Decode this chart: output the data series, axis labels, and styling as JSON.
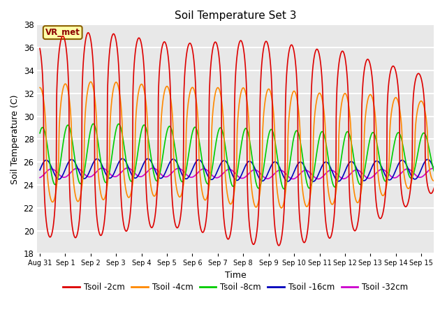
{
  "title": "Soil Temperature Set 3",
  "xlabel": "Time",
  "ylabel": "Soil Temperature (C)",
  "ylim": [
    18,
    38
  ],
  "yticks": [
    18,
    20,
    22,
    24,
    26,
    28,
    30,
    32,
    34,
    36,
    38
  ],
  "plot_bg_color": "#e8e8e8",
  "fig_bg_color": "#ffffff",
  "grid_color": "#ffffff",
  "series": {
    "Tsoil -2cm": {
      "color": "#dd0000",
      "mean": 28.0,
      "amp": 8.5,
      "phase_days": 0.65,
      "power": 3
    },
    "Tsoil -4cm": {
      "color": "#ff8800",
      "mean": 27.5,
      "amp": 5.0,
      "phase_days": 0.75,
      "power": 2
    },
    "Tsoil -8cm": {
      "color": "#00cc00",
      "mean": 26.5,
      "amp": 2.5,
      "phase_days": 0.85,
      "power": 1
    },
    "Tsoil -16cm": {
      "color": "#0000bb",
      "mean": 25.3,
      "amp": 0.85,
      "phase_days": 1.0,
      "power": 1
    },
    "Tsoil -32cm": {
      "color": "#cc00cc",
      "mean": 25.0,
      "amp": 0.38,
      "phase_days": 1.2,
      "power": 1
    }
  },
  "n_days": 15.5,
  "points_per_day": 96,
  "xtick_positions": [
    0,
    1,
    2,
    3,
    4,
    5,
    6,
    7,
    8,
    9,
    10,
    11,
    12,
    13,
    14,
    15
  ],
  "xtick_labels": [
    "Aug 31",
    "Sep 1",
    "Sep 2",
    "Sep 3",
    "Sep 4",
    "Sep 5",
    "Sep 6",
    "Sep 7",
    "Sep 8",
    "Sep 9",
    "Sep 10",
    "Sep 11",
    "Sep 12",
    "Sep 13",
    "Sep 14",
    "Sep 15"
  ],
  "annotation_text": "VR_met",
  "linewidth": 1.2
}
